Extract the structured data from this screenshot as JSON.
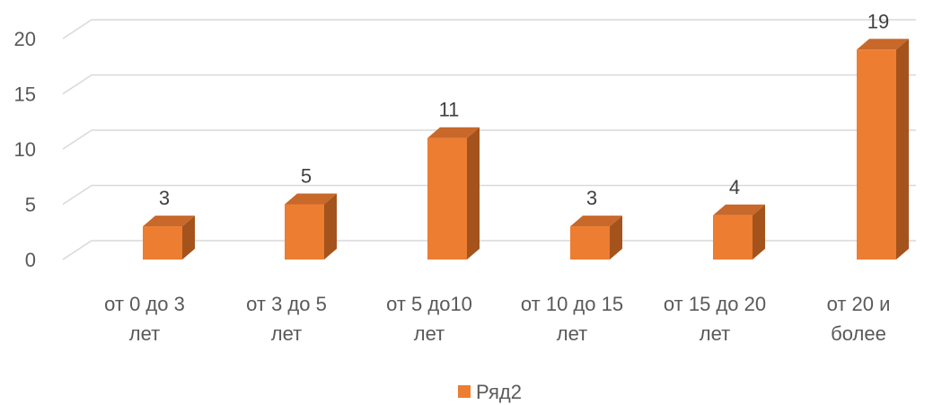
{
  "chart_data": {
    "type": "bar",
    "style": "3d-column",
    "categories": [
      "от 0 до 3\nлет",
      "от 3 до 5\nлет",
      "от 5 до10\nлет",
      "от 10 до 15\nлет",
      "от 15 до 20\nлет",
      "от 20 и\nболее"
    ],
    "series": [
      {
        "name": "Ряд2",
        "values": [
          3,
          5,
          11,
          3,
          4,
          19
        ]
      }
    ],
    "yticks": [
      0,
      5,
      10,
      15,
      20
    ],
    "ylim": [
      0,
      20
    ],
    "grid": true,
    "legend": "bottom",
    "data_labels": true,
    "colors": {
      "front": "#ED7D31",
      "side": "#A5531C",
      "top": "#C8682A",
      "grid": "#D9D9D9",
      "text": "#595959"
    }
  }
}
